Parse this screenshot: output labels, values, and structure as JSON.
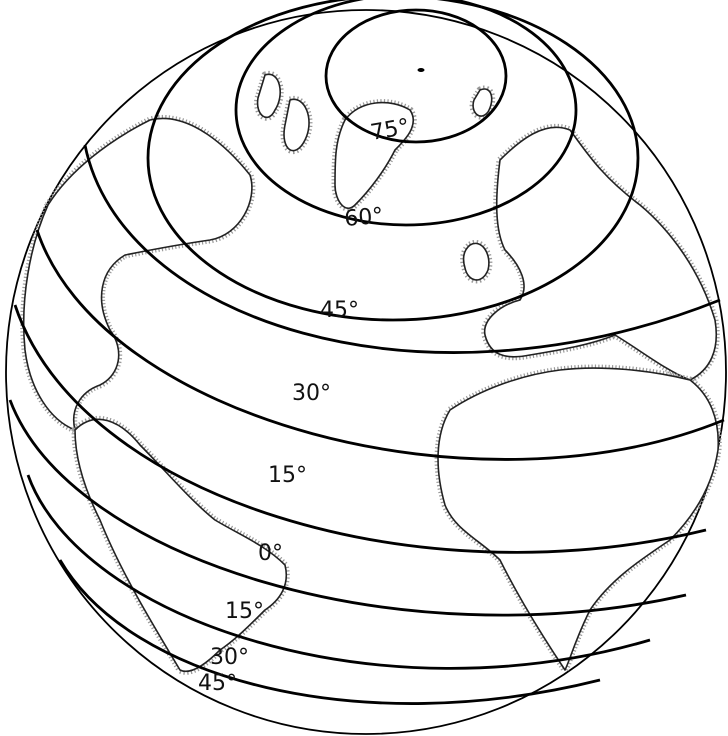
{
  "map": {
    "projection": "orthographic",
    "graticule": {
      "parallels": [
        {
          "lat": 75,
          "label": "75°"
        },
        {
          "lat": 60,
          "label": "60°"
        },
        {
          "lat": 45,
          "label": "45°"
        },
        {
          "lat": 30,
          "label": "30°"
        },
        {
          "lat": 15,
          "label": "15°"
        },
        {
          "lat": 0,
          "label": "0°"
        },
        {
          "lat": -15,
          "label": "15°"
        },
        {
          "lat": -30,
          "label": "30°"
        },
        {
          "lat": -45,
          "label": "45°"
        }
      ]
    },
    "colors": {
      "ocean": "#ffffff",
      "land": "#ffffff",
      "coastline": "#222222",
      "coast_halo": "#9a9a9a",
      "graticule": "#000000"
    }
  }
}
